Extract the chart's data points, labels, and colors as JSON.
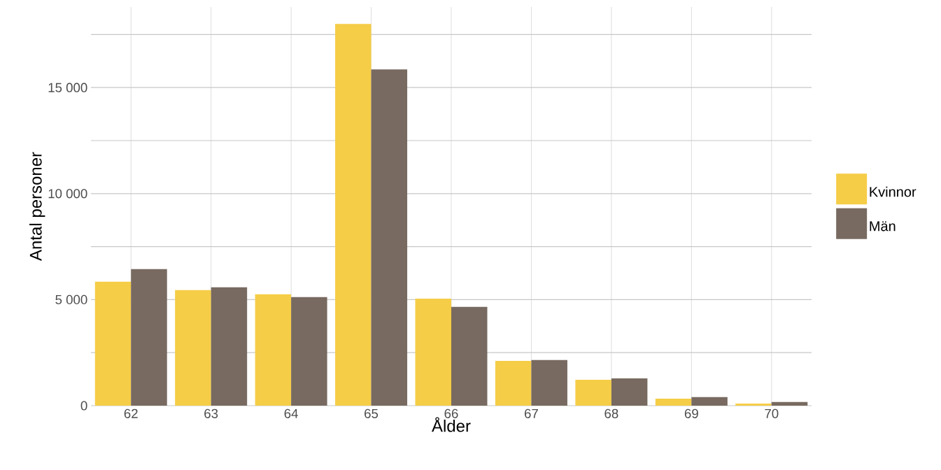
{
  "chart_data": {
    "type": "bar",
    "xlabel": "Ålder",
    "ylabel": "Antal personer",
    "categories": [
      "62",
      "63",
      "64",
      "65",
      "66",
      "67",
      "68",
      "69",
      "70"
    ],
    "series": [
      {
        "name": "Kvinnor",
        "color": "#f5cd47",
        "values": [
          5850,
          5450,
          5250,
          18000,
          5050,
          2110,
          1220,
          330,
          100
        ]
      },
      {
        "name": "Män",
        "color": "#786a60",
        "values": [
          6440,
          5580,
          5120,
          15860,
          4660,
          2150,
          1290,
          400,
          170
        ]
      }
    ],
    "ylim": [
      0,
      18800
    ],
    "yticks": [
      0,
      {
        "value": 2500,
        "label": null
      },
      {
        "value": 5000,
        "label": "5 000"
      },
      {
        "value": 7500,
        "label": null
      },
      {
        "value": 10000,
        "label": "10 000"
      },
      {
        "value": 12500,
        "label": null
      },
      {
        "value": 15000,
        "label": "15 000"
      },
      {
        "value": 17500,
        "label": null
      }
    ],
    "grid": true,
    "legend": "right"
  }
}
